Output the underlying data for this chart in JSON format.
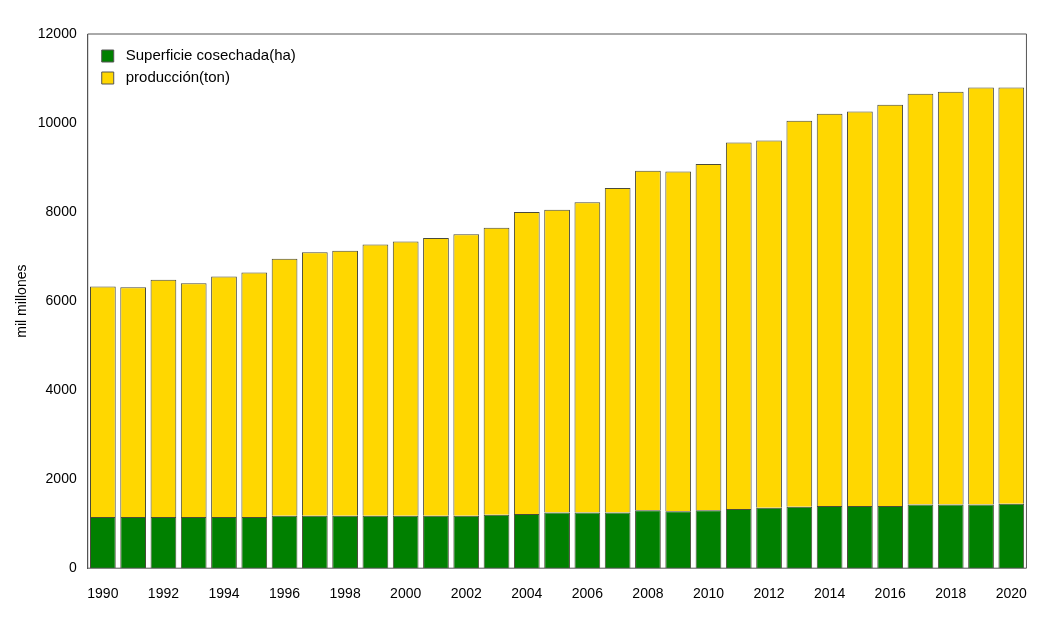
{
  "chart_data": {
    "type": "bar",
    "stacked": true,
    "ylabel": "mil millones",
    "categories": [
      "1990",
      null,
      "1992",
      null,
      "1994",
      null,
      "1996",
      null,
      "1998",
      null,
      "2000",
      null,
      "2002",
      null,
      "2004",
      null,
      "2006",
      null,
      "2008",
      null,
      "2010",
      null,
      "2012",
      null,
      "2014",
      null,
      "2016",
      null,
      "2018",
      null,
      "2020"
    ],
    "series": [
      {
        "name": "Superficie cosechada(ha)",
        "color": "#008000",
        "values": [
          1150,
          1150,
          1150,
          1150,
          1150,
          1150,
          1180,
          1180,
          1180,
          1180,
          1180,
          1180,
          1180,
          1200,
          1220,
          1250,
          1250,
          1250,
          1300,
          1280,
          1300,
          1330,
          1360,
          1380,
          1400,
          1400,
          1400,
          1430,
          1430,
          1430,
          1450
        ]
      },
      {
        "name": "producción(ton)",
        "color": "#ffd700",
        "values": [
          5180,
          5160,
          5330,
          5250,
          5400,
          5490,
          5770,
          5920,
          5950,
          6090,
          6160,
          6240,
          6320,
          6450,
          6780,
          6800,
          6970,
          7290,
          7630,
          7630,
          7780,
          8230,
          8250,
          8670,
          8810,
          8860,
          9010,
          9230,
          9270,
          9370,
          9350
        ]
      }
    ],
    "ylim": [
      0,
      12000
    ],
    "yticks": [
      0,
      2000,
      4000,
      6000,
      8000,
      10000,
      12000
    ],
    "legend": "top left"
  }
}
